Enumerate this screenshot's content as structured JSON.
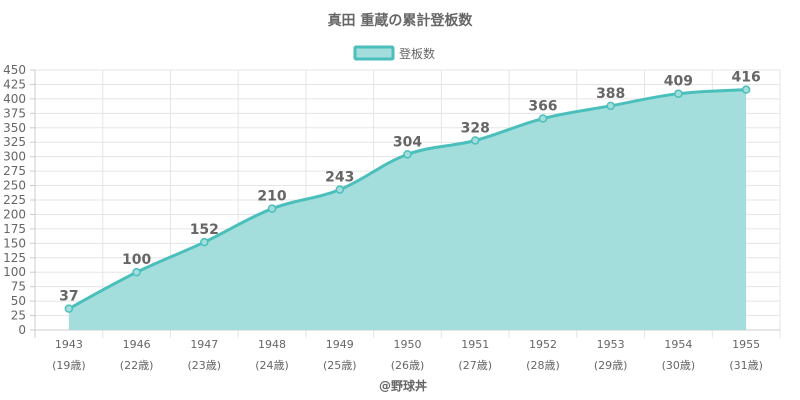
{
  "chart_data": {
    "type": "area",
    "title": "真田 重蔵の累計登板数",
    "legend": {
      "position": "top",
      "label": "登板数"
    },
    "categories": [
      "1943",
      "1946",
      "1947",
      "1948",
      "1949",
      "1950",
      "1951",
      "1952",
      "1953",
      "1954",
      "1955"
    ],
    "category_sublabels": [
      "(19歳)",
      "(22歳)",
      "(23歳)",
      "(24歳)",
      "(25歳)",
      "(26歳)",
      "(27歳)",
      "(28歳)",
      "(29歳)",
      "(30歳)",
      "(31歳)"
    ],
    "series": [
      {
        "name": "登板数",
        "values": [
          37,
          100,
          152,
          210,
          243,
          304,
          328,
          366,
          388,
          409,
          416
        ]
      }
    ],
    "ylim": [
      0,
      450
    ],
    "y_ticks": [
      0,
      25,
      50,
      75,
      100,
      125,
      150,
      175,
      200,
      225,
      250,
      275,
      300,
      325,
      350,
      375,
      400,
      425,
      450
    ],
    "xlabel": "",
    "ylabel": "",
    "grid": true,
    "colors": {
      "line": "#4bbfbb",
      "fill": "#a3dedc",
      "grid": "#e5e5e5",
      "axis": "#cccccc",
      "text": "#666666"
    }
  },
  "credit": "@野球丼"
}
